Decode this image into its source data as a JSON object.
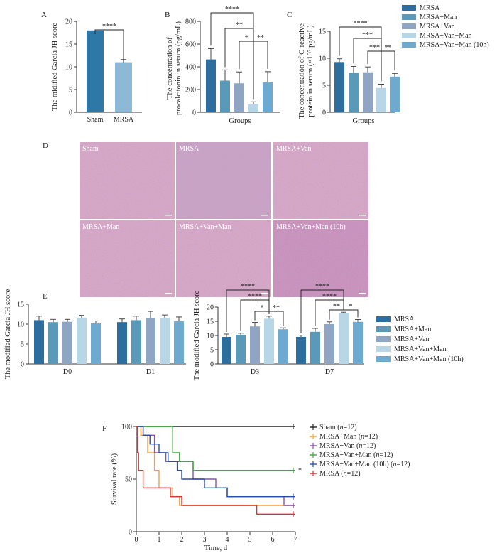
{
  "colors": {
    "sham_bar": "#2e78a8",
    "mrsa_bar_A": "#8db8d6",
    "MRSA": "#2e6e9e",
    "MRSA+Man": "#5a9ab8",
    "MRSA+Van": "#8ea6c4",
    "MRSA+Van+Man": "#b7d6e6",
    "MRSA+Van+Man (10h)": "#6ea9cf",
    "km_sham": "#222222",
    "km_man": "#f0a040",
    "km_van": "#8a4fb0",
    "km_vanman": "#3aaa3a",
    "km_10h": "#2b4fa8",
    "km_mrsa": "#e03030",
    "histo_bg": "#d9a9c4"
  },
  "chart_data": [
    {
      "id": "A",
      "letter": "A",
      "type": "bar",
      "categories": [
        "Sham",
        "MRSA"
      ],
      "values": [
        18,
        11
      ],
      "errors": [
        0,
        0.6
      ],
      "ylabel": "The midified Garcia JH score",
      "ylim": [
        0,
        20
      ],
      "yticks": [
        0,
        5,
        10,
        15,
        20
      ],
      "significance": [
        {
          "from": 0,
          "to": 1,
          "label": "****"
        }
      ]
    },
    {
      "id": "B",
      "letter": "B",
      "type": "bar",
      "categories": [
        "MRSA",
        "MRSA+Man",
        "MRSA+Van",
        "MRSA+Van+Man",
        "MRSA+Van+Man (10h)"
      ],
      "values": [
        465,
        278,
        255,
        72,
        262
      ],
      "errors": [
        95,
        95,
        100,
        20,
        95
      ],
      "xlabel": "Groups",
      "ylabel_lines": [
        "The concentration of",
        "procalcitonin in serum (pg/mL)"
      ],
      "ylim": [
        0,
        800
      ],
      "yticks": [
        0,
        200,
        400,
        600,
        800
      ],
      "significance": [
        {
          "from": 0,
          "to": 3,
          "label": "****"
        },
        {
          "from": 1,
          "to": 3,
          "label": "**"
        },
        {
          "from": 2,
          "to": 3,
          "label": "*"
        },
        {
          "from": 3,
          "to": 4,
          "label": "**"
        }
      ]
    },
    {
      "id": "C",
      "letter": "C",
      "type": "bar",
      "categories": [
        "MRSA",
        "MRSA+Man",
        "MRSA+Van",
        "MRSA+Van+Man",
        "MRSA+Van+Man (10h)"
      ],
      "values": [
        9.3,
        7.3,
        7.4,
        4.5,
        6.6
      ],
      "errors": [
        0.6,
        1.2,
        1.0,
        0.7,
        0.6
      ],
      "xlabel": "Groups",
      "ylabel_lines": [
        "The concentration of C-reactive",
        "protein in serum (×10⁷ pg/mL)"
      ],
      "ylim": [
        0,
        15
      ],
      "yticks": [
        0,
        5,
        10,
        15
      ],
      "significance": [
        {
          "from": 0,
          "to": 3,
          "label": "****"
        },
        {
          "from": 1,
          "to": 3,
          "label": "***"
        },
        {
          "from": 2,
          "to": 3,
          "label": "***"
        },
        {
          "from": 3,
          "to": 4,
          "label": "**"
        }
      ],
      "legend": [
        "MRSA",
        "MRSA+Man",
        "MRSA+Van",
        "MRSA+Van+Man",
        "MRSA+Van+Man (10h)"
      ]
    },
    {
      "id": "E1",
      "letter": "E",
      "type": "bar",
      "categories": [
        "D0",
        "D1"
      ],
      "series": [
        {
          "name": "MRSA",
          "values": [
            11.0,
            10.5
          ],
          "errors": [
            1.0,
            0.8
          ]
        },
        {
          "name": "MRSA+Man",
          "values": [
            10.5,
            11.0
          ],
          "errors": [
            0.7,
            1.0
          ]
        },
        {
          "name": "MRSA+Van",
          "values": [
            10.6,
            11.6
          ],
          "errors": [
            0.6,
            1.6
          ]
        },
        {
          "name": "MRSA+Van+Man",
          "values": [
            11.6,
            11.6
          ],
          "errors": [
            0.6,
            0.7
          ]
        },
        {
          "name": "MRSA+Van+Man (10h)",
          "values": [
            10.2,
            10.7
          ],
          "errors": [
            0.6,
            1.1
          ]
        }
      ],
      "ylabel": "The modified Garcia JH score",
      "ylim": [
        0,
        15
      ],
      "yticks": [
        0,
        5,
        10,
        15
      ]
    },
    {
      "id": "E2",
      "type": "bar",
      "categories": [
        "D3",
        "D7"
      ],
      "series": [
        {
          "name": "MRSA",
          "values": [
            9.5,
            9.5
          ],
          "errors": [
            1.0,
            0.6
          ]
        },
        {
          "name": "MRSA+Man",
          "values": [
            10.2,
            11.3
          ],
          "errors": [
            0.6,
            1.2
          ]
        },
        {
          "name": "MRSA+Van",
          "values": [
            13.2,
            14.0
          ],
          "errors": [
            1.4,
            0.8
          ]
        },
        {
          "name": "MRSA+Van+Man",
          "values": [
            15.9,
            18.0
          ],
          "errors": [
            0.9,
            0.2
          ]
        },
        {
          "name": "MRSA+Van+Man (10h)",
          "values": [
            12.2,
            14.8
          ],
          "errors": [
            0.5,
            0.8
          ]
        }
      ],
      "ylabel": "The modified Garcia JH score",
      "ylim": [
        0,
        20
      ],
      "yticks": [
        0,
        5,
        10,
        15,
        20
      ],
      "significance": [
        {
          "category": 0,
          "from": 0,
          "to": 3,
          "label": "****"
        },
        {
          "category": 0,
          "from": 1,
          "to": 3,
          "label": "****"
        },
        {
          "category": 0,
          "from": 2,
          "to": 3,
          "label": "*"
        },
        {
          "category": 0,
          "from": 3,
          "to": 4,
          "label": "**"
        },
        {
          "category": 1,
          "from": 0,
          "to": 3,
          "label": "****"
        },
        {
          "category": 1,
          "from": 1,
          "to": 3,
          "label": "****"
        },
        {
          "category": 1,
          "from": 2,
          "to": 3,
          "label": "**"
        },
        {
          "category": 1,
          "from": 3,
          "to": 4,
          "label": "*"
        }
      ],
      "legend": [
        "MRSA",
        "MRSA+Man",
        "MRSA+Van",
        "MRSA+Van+Man",
        "MRSA+Van+Man (10h)"
      ]
    },
    {
      "id": "F",
      "letter": "F",
      "type": "line",
      "xlabel": "Time, d",
      "ylabel": "Survival rate (%)",
      "xlim": [
        0,
        7
      ],
      "ylim": [
        0,
        100
      ],
      "xticks": [
        0,
        1,
        2,
        3,
        4,
        5,
        6,
        7
      ],
      "yticks": [
        0,
        50,
        100
      ],
      "significance_marker": "*",
      "series": [
        {
          "name": "Sham",
          "n_label": "n",
          "n": "=12",
          "color_key": "km_sham",
          "steps": [
            [
              0,
              100
            ],
            [
              7,
              100
            ]
          ]
        },
        {
          "name": "MRSA+Man",
          "n_label": "n",
          "n": "=12",
          "color_key": "km_man",
          "steps": [
            [
              0,
              100
            ],
            [
              0.2,
              91.7
            ],
            [
              0.5,
              75
            ],
            [
              0.8,
              58.3
            ],
            [
              1.0,
              41.7
            ],
            [
              1.6,
              33.3
            ],
            [
              1.9,
              25
            ],
            [
              7,
              25
            ]
          ]
        },
        {
          "name": "MRSA+Van",
          "n_label": "n",
          "n": "=12",
          "color_key": "km_van",
          "steps": [
            [
              0,
              100
            ],
            [
              0.3,
              91.7
            ],
            [
              0.8,
              75
            ],
            [
              1.3,
              66.7
            ],
            [
              2.5,
              50
            ],
            [
              3.5,
              41.7
            ],
            [
              4.0,
              33.3
            ],
            [
              6.5,
              25
            ],
            [
              7,
              25
            ]
          ]
        },
        {
          "name": "MRSA+Van+Man",
          "n_label": "n",
          "n": "=12",
          "color_key": "km_vanman",
          "steps": [
            [
              0,
              100
            ],
            [
              1.6,
              75
            ],
            [
              1.9,
              66.7
            ],
            [
              2.5,
              58.3
            ],
            [
              7,
              58.3
            ]
          ]
        },
        {
          "name": "MRSA+Van+Man (10h)",
          "n_label": "n",
          "n": "=12",
          "color_key": "km_10h",
          "steps": [
            [
              0,
              100
            ],
            [
              0.3,
              91.7
            ],
            [
              0.6,
              83.3
            ],
            [
              1.0,
              75
            ],
            [
              1.4,
              66.7
            ],
            [
              1.8,
              58.3
            ],
            [
              2.0,
              50
            ],
            [
              3.0,
              41.7
            ],
            [
              4.0,
              33.3
            ],
            [
              7,
              33.3
            ]
          ]
        },
        {
          "name": "MRSA",
          "n_label": "n",
          "n": "=12",
          "color_key": "km_mrsa",
          "steps": [
            [
              0,
              100
            ],
            [
              0.05,
              75
            ],
            [
              0.1,
              58.3
            ],
            [
              0.3,
              41.7
            ],
            [
              1.5,
              33.3
            ],
            [
              2.0,
              25
            ],
            [
              5.3,
              16.7
            ],
            [
              7,
              16.7
            ]
          ]
        }
      ]
    }
  ],
  "histology": {
    "letter": "D",
    "panels": [
      "Sham",
      "MRSA",
      "MRSA+Van",
      "MRSA+Man",
      "MRSA+Van+Man",
      "MRSA+Van+Man (10h)"
    ]
  }
}
